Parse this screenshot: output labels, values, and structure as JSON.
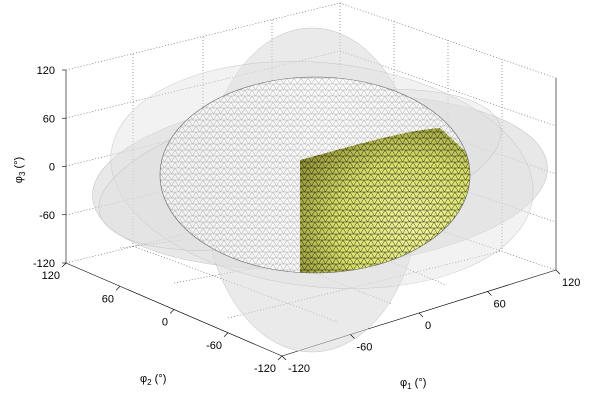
{
  "chart_data": {
    "type": "scatter",
    "subtype": "3d-surface",
    "title": "",
    "axes": {
      "x": {
        "label_symbol": "φ",
        "label_sub": "1",
        "label_unit": " (°)",
        "ticks": [
          "-120",
          "-60",
          "0",
          "60",
          "120"
        ],
        "range": [
          -120,
          120
        ]
      },
      "y": {
        "label_symbol": "φ",
        "label_sub": "2",
        "label_unit": " (°)",
        "ticks": [
          "120",
          "60",
          "0",
          "-60",
          "-120"
        ],
        "range": [
          -120,
          120
        ]
      },
      "z": {
        "label_symbol": "φ",
        "label_sub": "3",
        "label_unit": " (°)",
        "ticks": [
          "120",
          "60",
          "0",
          "-60",
          "-120"
        ],
        "range": [
          -120,
          120
        ]
      }
    },
    "grid": true,
    "surfaces": [
      {
        "shape": "translucent-disc",
        "orientation": "phi1-phi2-plane",
        "radius": 120,
        "color": "#c8c8c8"
      },
      {
        "shape": "translucent-disc",
        "orientation": "phi2-phi3-plane",
        "radius": 120,
        "color": "#c8c8c8"
      },
      {
        "shape": "translucent-disc",
        "orientation": "phi1-phi3-plane",
        "radius": 120,
        "color": "#c8c8c8"
      },
      {
        "shape": "triangulated-mesh-ellipsoid",
        "semi_axes": [
          90,
          100,
          60
        ],
        "face_color": "#e6ec6e",
        "edge_color": "#000000"
      }
    ]
  }
}
